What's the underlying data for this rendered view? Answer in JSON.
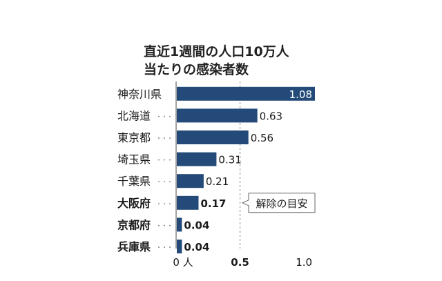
{
  "chart_data": {
    "type": "bar",
    "orientation": "horizontal",
    "title_lines": [
      "直近1週間の人口10万人",
      "当たりの感染者数"
    ],
    "categories": [
      "神奈川県",
      "北海道",
      "東京都",
      "埼玉県",
      "千葉県",
      "大阪府",
      "京都府",
      "兵庫県"
    ],
    "emphasized_categories": [
      "大阪府",
      "京都府",
      "兵庫県"
    ],
    "leader": "・・・",
    "values": [
      1.08,
      0.63,
      0.56,
      0.31,
      0.21,
      0.17,
      0.04,
      0.04
    ],
    "value_labels": [
      "1.08",
      "0.63",
      "0.56",
      "0.31",
      "0.21",
      "0.17",
      "0.04",
      "0.04"
    ],
    "xlim": [
      0,
      1.08
    ],
    "x_ticks": [
      {
        "value": 0,
        "label": "0 人"
      },
      {
        "value": 0.5,
        "label": "0.5"
      },
      {
        "value": 1.0,
        "label": "1.0"
      }
    ],
    "reference_line": {
      "value": 0.5,
      "style": "dashed",
      "annotation": "解除の目安"
    },
    "colors": {
      "bar": "#234a78",
      "reference": "#888888",
      "text": "#1a1a1a"
    }
  }
}
